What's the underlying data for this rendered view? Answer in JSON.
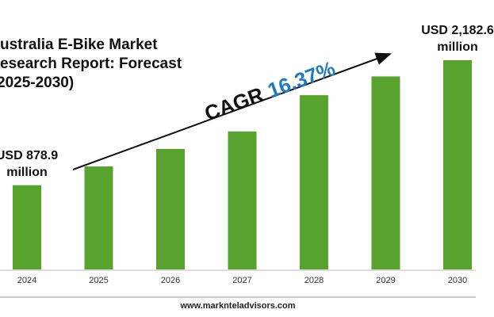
{
  "chart_data": {
    "type": "bar",
    "title_lines": [
      "ustralia E-Bike Market",
      "esearch Report: Forecast",
      "2025-2030)"
    ],
    "categories": [
      "2024",
      "2025",
      "2026",
      "2027",
      "2028",
      "2029",
      "2030"
    ],
    "values": [
      878.9,
      1075,
      1257,
      1440,
      1818,
      2014,
      2182.6
    ],
    "value_labels": [
      "USD 878.9 million",
      null,
      null,
      null,
      null,
      null,
      "USD 2,182.6 million"
    ],
    "color": "#58a22e",
    "annotation": {
      "label": "CAGR",
      "value": "16.37%",
      "value_color": "#1f7bc1"
    },
    "footer": "www.marknteladvisors.com"
  }
}
